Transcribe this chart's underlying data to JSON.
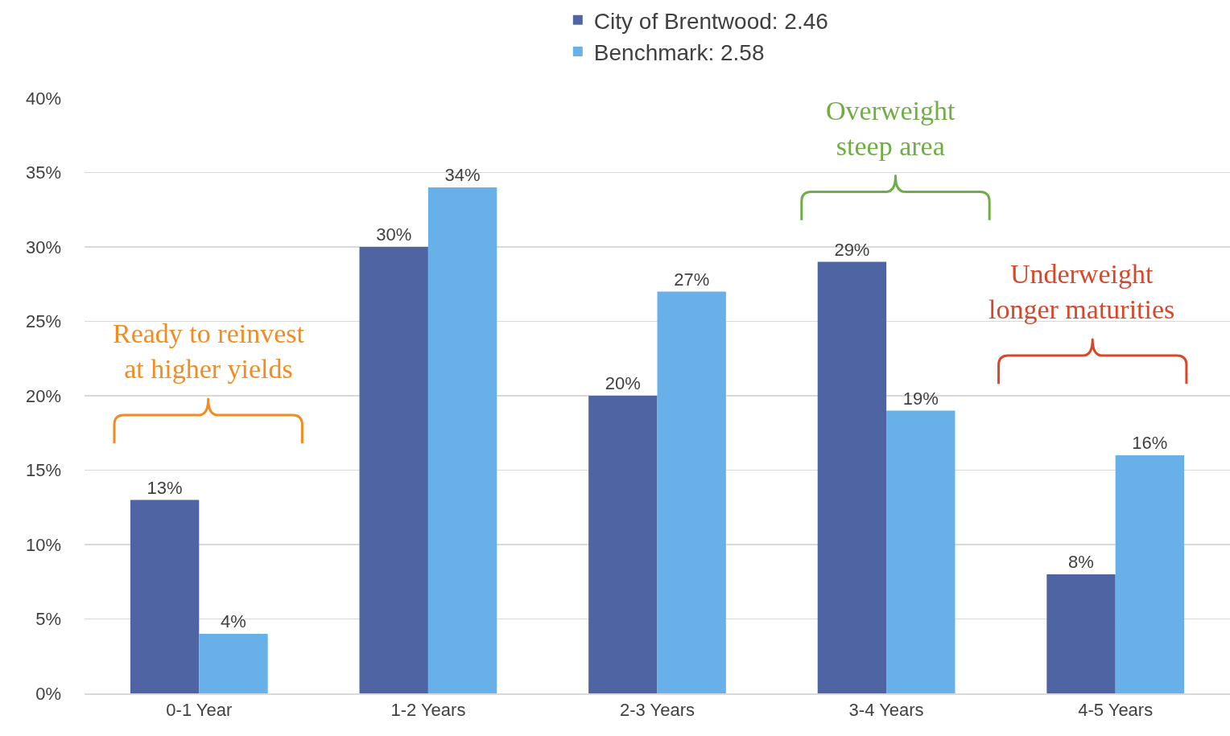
{
  "chart_data": {
    "type": "bar",
    "categories": [
      "0-1 Year",
      "1-2 Years",
      "2-3 Years",
      "3-4 Years",
      "4-5 Years"
    ],
    "series": [
      {
        "name": "City of Brentwood: 2.46",
        "color": "#4f65a3",
        "values": [
          13,
          30,
          20,
          29,
          8
        ],
        "value_labels": [
          "13%",
          "30%",
          "20%",
          "29%",
          "8%"
        ]
      },
      {
        "name": "Benchmark: 2.58",
        "color": "#67b1e8",
        "values": [
          4,
          34,
          27,
          19,
          16
        ],
        "value_labels": [
          "4%",
          "34%",
          "27%",
          "19%",
          "16%"
        ]
      }
    ],
    "ylim": [
      0,
      40
    ],
    "yticks": [
      {
        "value": 0,
        "label": "0%"
      },
      {
        "value": 5,
        "label": "5%"
      },
      {
        "value": 10,
        "label": "10%"
      },
      {
        "value": 15,
        "label": "15%"
      },
      {
        "value": 20,
        "label": "20%"
      },
      {
        "value": 25,
        "label": "25%"
      },
      {
        "value": 30,
        "label": "30%"
      },
      {
        "value": 35,
        "label": "35%"
      },
      {
        "value": 40,
        "label": "40%"
      }
    ],
    "grid": "y",
    "legend": "top",
    "annotations": [
      "Ready to reinvest\nat higher yields",
      "Overweight\nsteep area",
      "Underweight\nlonger maturities"
    ]
  }
}
